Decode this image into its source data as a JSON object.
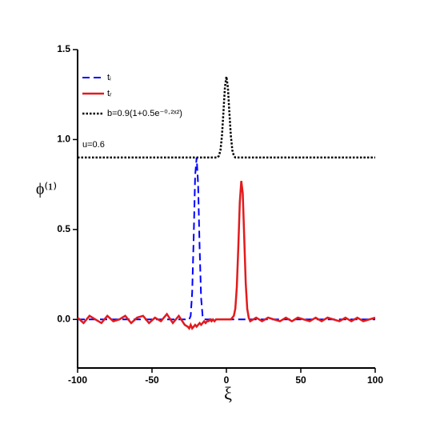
{
  "chart_data": {
    "type": "line",
    "xlabel": "ξ",
    "ylabel": "ϕ⁽¹⁾",
    "annotation": "u=0.6",
    "xlim": [
      -100,
      100
    ],
    "xticks": [
      -100,
      -50,
      0,
      50,
      100
    ],
    "ylim": [
      -0.27,
      1.5
    ],
    "yticks": [
      {
        "value": 0,
        "label": "0.0"
      },
      0.5,
      {
        "value": 1,
        "label": "1.0"
      },
      1.5
    ],
    "legend": "top-left",
    "x": [
      -100,
      -96,
      -92,
      -88,
      -84,
      -80,
      -76,
      -72,
      -68,
      -64,
      -60,
      -56,
      -52,
      -48,
      -44,
      -40,
      -36,
      -32,
      -28,
      -26,
      -25,
      -24,
      -23,
      -22,
      -21,
      -20,
      -19,
      -18,
      -17,
      -16,
      -15,
      -14,
      -13,
      -12,
      -11,
      -10,
      -9,
      -8,
      -7,
      -6,
      -5,
      -4,
      -3,
      -2,
      -1,
      0,
      1,
      2,
      3,
      4,
      5,
      6,
      7,
      8,
      9,
      10,
      11,
      12,
      13,
      14,
      15,
      16,
      20,
      24,
      28,
      32,
      36,
      40,
      44,
      48,
      52,
      56,
      60,
      64,
      68,
      72,
      76,
      80,
      84,
      88,
      92,
      96,
      100
    ],
    "series": [
      {
        "name": "tᵢ",
        "color": "#0000ff",
        "style": "dashed",
        "values": [
          0,
          0,
          0,
          0,
          0,
          0,
          0,
          0,
          0,
          0,
          0,
          0,
          0,
          0,
          0,
          0,
          0,
          0,
          0,
          0,
          0,
          0.02,
          0.15,
          0.45,
          0.8,
          0.9,
          0.75,
          0.4,
          0.12,
          0.02,
          0,
          0,
          0,
          0,
          0,
          0,
          0,
          0,
          0,
          0,
          0,
          0,
          0,
          0,
          0,
          0,
          0,
          0,
          0,
          0,
          0,
          0,
          0,
          0,
          0,
          0,
          0,
          0,
          0,
          0,
          0,
          0,
          0,
          0,
          0,
          0,
          0,
          0,
          0,
          0,
          0,
          0,
          0,
          0,
          0,
          0,
          0,
          0,
          0,
          0,
          0,
          0,
          0
        ]
      },
      {
        "name": "tᵣ",
        "color": "#e31a1c",
        "style": "solid",
        "values": [
          0.01,
          -0.02,
          0.02,
          0,
          -0.02,
          0.02,
          -0.01,
          0,
          0.02,
          -0.02,
          0.01,
          0.02,
          -0.02,
          0.01,
          -0.01,
          0.03,
          -0.02,
          0.02,
          -0.03,
          -0.04,
          -0.05,
          -0.03,
          -0.05,
          -0.04,
          -0.03,
          -0.04,
          -0.03,
          -0.02,
          -0.03,
          -0.02,
          -0.01,
          -0.02,
          -0.01,
          -0.01,
          0,
          -0.01,
          0,
          -0.01,
          0,
          0,
          0,
          0,
          0,
          0,
          0,
          0,
          0,
          0,
          0,
          0.01,
          0.02,
          0.06,
          0.18,
          0.4,
          0.65,
          0.77,
          0.7,
          0.45,
          0.2,
          0.06,
          0.01,
          -0.01,
          0.01,
          -0.01,
          0.01,
          0,
          -0.01,
          0.01,
          -0.01,
          0.01,
          0,
          -0.01,
          0.01,
          -0.01,
          0.01,
          0,
          -0.01,
          0.01,
          -0.01,
          0.01,
          -0.01,
          0,
          0.01
        ]
      },
      {
        "name": "b=0.9(1+0.5e⁻⁰·²ˣ²)",
        "color": "#000000",
        "style": "dotted",
        "values": [
          0.9,
          0.9,
          0.9,
          0.9,
          0.9,
          0.9,
          0.9,
          0.9,
          0.9,
          0.9,
          0.9,
          0.9,
          0.9,
          0.9,
          0.9,
          0.9,
          0.9,
          0.9,
          0.9,
          0.9,
          0.9,
          0.9,
          0.9,
          0.9,
          0.9,
          0.9,
          0.9,
          0.9,
          0.9,
          0.9,
          0.9,
          0.9,
          0.9,
          0.9,
          0.9,
          0.9,
          0.9,
          0.9,
          0.9,
          0.9,
          0.91,
          0.94,
          1.02,
          1.15,
          1.29,
          1.35,
          1.29,
          1.15,
          1.02,
          0.94,
          0.91,
          0.9,
          0.9,
          0.9,
          0.9,
          0.9,
          0.9,
          0.9,
          0.9,
          0.9,
          0.9,
          0.9,
          0.9,
          0.9,
          0.9,
          0.9,
          0.9,
          0.9,
          0.9,
          0.9,
          0.9,
          0.9,
          0.9,
          0.9,
          0.9,
          0.9,
          0.9,
          0.9,
          0.9,
          0.9,
          0.9,
          0.9,
          0.9
        ]
      }
    ]
  }
}
